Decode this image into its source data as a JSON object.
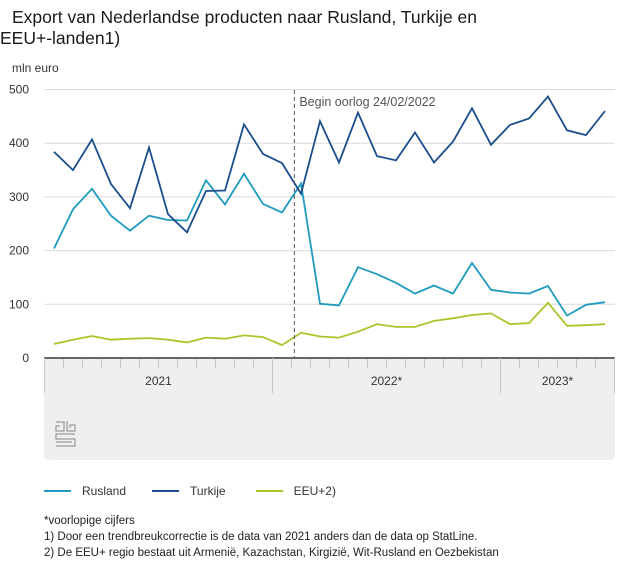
{
  "title_line1": "Export van Nederlandse producten naar Rusland, Turkije en",
  "title_line2": "EEU+-landen1)",
  "unit_label": "mln euro",
  "annotation": "Begin oorlog 24/02/2022",
  "logo": "cbs-logo",
  "legend": [
    {
      "name": "Rusland",
      "color": "#1f9bbf"
    },
    {
      "name": "Turkije",
      "color": "#1b4f8c"
    },
    {
      "name": "EEU+2)",
      "color": "#a8c62a"
    }
  ],
  "notes": [
    "*voorlopige cijfers",
    "1) Door een trendbreukcorrectie is de data van 2021 anders dan de data op StatLine.",
    "2) De EEU+ regio bestaat uit Armenië, Kazachstan, Kirgizië, Wit-Rusland en Oezbekistan"
  ],
  "chart_data": {
    "type": "line",
    "title": "Export van Nederlandse producten naar Rusland, Turkije en EEU+-landen1)",
    "ylabel": "mln euro",
    "xlabel": "",
    "ylim": [
      0,
      500
    ],
    "yticks": [
      0,
      100,
      200,
      300,
      400,
      500
    ],
    "grid": true,
    "legend_position": "bottom",
    "x": [
      "2021-01",
      "2021-02",
      "2021-03",
      "2021-04",
      "2021-05",
      "2021-06",
      "2021-07",
      "2021-08",
      "2021-09",
      "2021-10",
      "2021-11",
      "2021-12",
      "2022-01",
      "2022-02",
      "2022-03",
      "2022-04",
      "2022-05",
      "2022-06",
      "2022-07",
      "2022-08",
      "2022-09",
      "2022-10",
      "2022-11",
      "2022-12",
      "2023-01",
      "2023-02",
      "2023-03",
      "2023-04",
      "2023-05",
      "2023-06"
    ],
    "year_groups": [
      {
        "label": "2021",
        "months": 12
      },
      {
        "label": "2022*",
        "months": 12
      },
      {
        "label": "2023*",
        "months": 6
      }
    ],
    "annotations": [
      {
        "type": "vline",
        "x_month_index": 13.15,
        "label": "Begin oorlog 24/02/2022"
      }
    ],
    "series": [
      {
        "name": "Rusland",
        "color": "#1f9bbf",
        "values": [
          204,
          277,
          315,
          265,
          237,
          265,
          257,
          256,
          331,
          286,
          343,
          287,
          271,
          325,
          101,
          98,
          169,
          156,
          140,
          120,
          135,
          120,
          177,
          127,
          122,
          120,
          134,
          79,
          99,
          104
        ]
      },
      {
        "name": "Turkije",
        "color": "#1b4f8c",
        "values": [
          384,
          350,
          407,
          324,
          279,
          392,
          268,
          234,
          311,
          312,
          435,
          380,
          363,
          306,
          441,
          364,
          457,
          376,
          368,
          420,
          364,
          403,
          465,
          397,
          434,
          446,
          487,
          424,
          415,
          460
        ]
      },
      {
        "name": "EEU+2)",
        "color": "#a8c62a",
        "values": [
          26,
          34,
          41,
          34,
          36,
          37,
          34,
          29,
          38,
          36,
          42,
          39,
          24,
          47,
          40,
          38,
          49,
          63,
          58,
          58,
          69,
          74,
          80,
          83,
          63,
          65,
          103,
          60,
          61,
          63
        ]
      }
    ]
  }
}
